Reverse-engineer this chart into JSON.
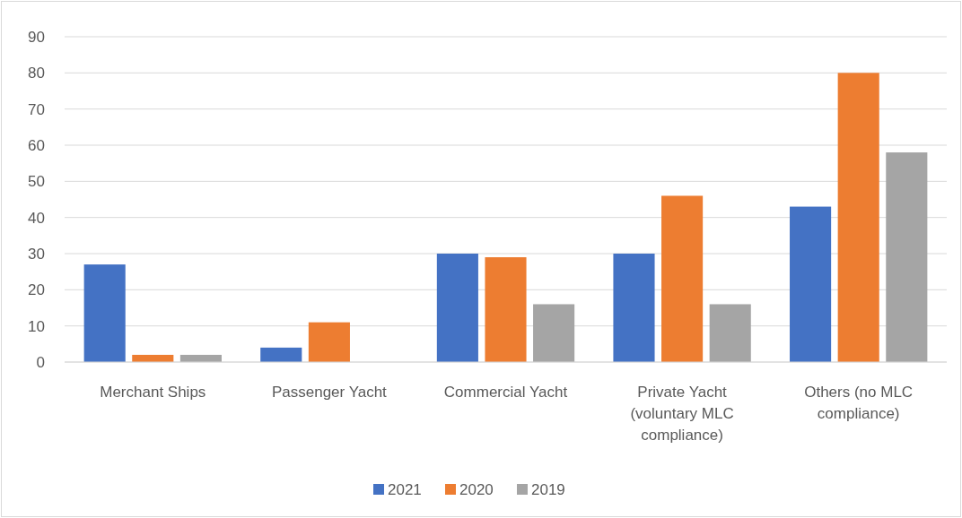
{
  "chart_data": {
    "type": "bar",
    "categories": [
      "Merchant Ships",
      "Passenger Yacht",
      "Commercial Yacht",
      "Private Yacht (voluntary MLC compliance)",
      "Others (no MLC compliance)"
    ],
    "series": [
      {
        "name": "2021",
        "color": "#4472c4",
        "values": [
          27,
          4,
          30,
          30,
          43
        ]
      },
      {
        "name": "2020",
        "color": "#ed7d31",
        "values": [
          2,
          11,
          29,
          46,
          80
        ]
      },
      {
        "name": "2019",
        "color": "#a5a5a5",
        "values": [
          2,
          0,
          16,
          16,
          58
        ]
      }
    ],
    "ylim": [
      0,
      90
    ],
    "yticks": [
      0,
      10,
      20,
      30,
      40,
      50,
      60,
      70,
      80,
      90
    ],
    "grid": "y",
    "legend": "bottom"
  }
}
